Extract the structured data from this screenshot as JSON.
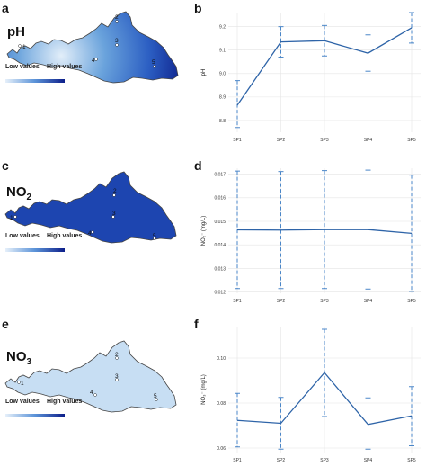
{
  "panel_letters": [
    "a",
    "b",
    "c",
    "d",
    "e",
    "f"
  ],
  "maps": [
    {
      "title": "pH",
      "title_sub": "",
      "legend_low": "Low values",
      "legend_high": "High values",
      "points": [
        "1",
        "2",
        "3",
        "4",
        "5"
      ]
    },
    {
      "title": "NO",
      "title_sub": "2",
      "legend_low": "Low values",
      "legend_high": "High values",
      "points": [
        "1",
        "2",
        "3",
        "4",
        "5"
      ]
    },
    {
      "title": "NO",
      "title_sub": "3",
      "legend_low": "Low values",
      "legend_high": "High values",
      "points": [
        "1",
        "2",
        "3",
        "4",
        "5"
      ]
    }
  ],
  "colors": {
    "line": "#2e64a8",
    "errorbar": "#4a86c8",
    "grid": "#e4e4e4",
    "map_dark": "#0d1f8a",
    "map_light": "#dcebf7"
  },
  "chart_data": [
    {
      "type": "line",
      "categories": [
        "SP1",
        "SP2",
        "SP3",
        "SP4",
        "SP5"
      ],
      "values": [
        8.865,
        9.135,
        9.14,
        9.087,
        9.195
      ],
      "error_low": [
        8.77,
        9.07,
        9.075,
        9.01,
        9.13
      ],
      "error_high": [
        8.97,
        9.2,
        9.205,
        9.165,
        9.26
      ],
      "ylabel": "pH",
      "yticks": [
        8.8,
        8.9,
        9.0,
        9.1,
        9.2
      ],
      "ytick_labels": [
        "8.8",
        "8.9",
        "9.0",
        "9.1",
        "9.2"
      ],
      "ylim": [
        8.75,
        9.26
      ],
      "grid": true
    },
    {
      "type": "line",
      "categories": [
        "SP1",
        "SP2",
        "SP3",
        "SP4",
        "SP5"
      ],
      "values": [
        0.01464,
        0.01463,
        0.01465,
        0.01465,
        0.01449
      ],
      "error_low": [
        0.01215,
        0.01215,
        0.01215,
        0.01213,
        0.01203
      ],
      "error_high": [
        0.01713,
        0.01711,
        0.01715,
        0.01717,
        0.01696
      ],
      "ylabel": "NO₂⁻ (mg/L)",
      "yticks": [
        0.012,
        0.013,
        0.014,
        0.015,
        0.016,
        0.017
      ],
      "ytick_labels": [
        "0.012",
        "0.013",
        "0.014",
        "0.015",
        "0.016",
        "0.017"
      ],
      "ylim": [
        0.01195,
        0.01725
      ],
      "grid": true
    },
    {
      "type": "line",
      "categories": [
        "SP1",
        "SP2",
        "SP3",
        "SP4",
        "SP5"
      ],
      "values": [
        0.0723,
        0.071,
        0.0935,
        0.0705,
        0.0743
      ],
      "error_low": [
        0.0605,
        0.0595,
        0.074,
        0.0595,
        0.061
      ],
      "error_high": [
        0.0843,
        0.0825,
        0.1128,
        0.0823,
        0.0873
      ],
      "ylabel": "NO₃⁻ (mg/L)",
      "yticks": [
        0.06,
        0.08,
        0.1
      ],
      "ytick_labels": [
        "0.06",
        "0.08",
        "0.10"
      ],
      "ylim": [
        0.058,
        0.114
      ],
      "grid": true
    }
  ]
}
